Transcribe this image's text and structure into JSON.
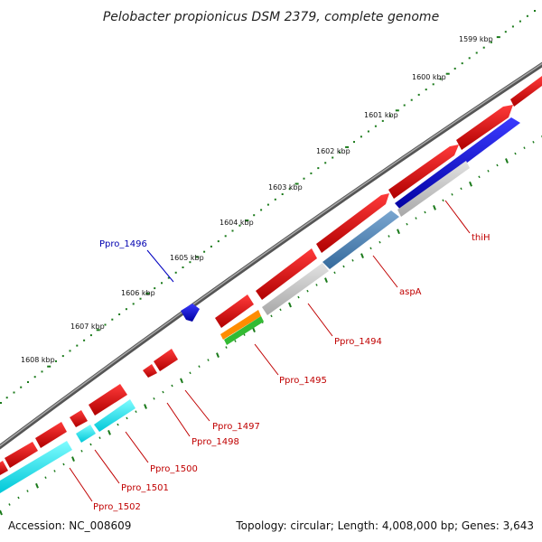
{
  "title": "Pelobacter propionicus DSM 2379, complete genome",
  "footer": {
    "accession": "Accession: NC_008609",
    "summary": "Topology: circular; Length: 4,008,000 bp; Genes: 3,643"
  },
  "ruler": {
    "labels": [
      "1599 kbp",
      "1600 kbp",
      "1601 kbp",
      "1602 kbp",
      "1603 kbp",
      "1604 kbp",
      "1605 kbp",
      "1606 kbp",
      "1607 kbp",
      "1608 kbp"
    ]
  },
  "genes": {
    "thiH": "thiH",
    "aspA": "aspA",
    "ppro_1494": "Ppro_1494",
    "ppro_1495": "Ppro_1495",
    "ppro_1496": "Ppro_1496",
    "ppro_1497": "Ppro_1497",
    "ppro_1498": "Ppro_1498",
    "ppro_1500": "Ppro_1500",
    "ppro_1501": "Ppro_1501",
    "ppro_1502": "Ppro_1502"
  },
  "colors": {
    "forward_cds": "#e00000",
    "reverse_cds": "#e00000",
    "blue_feature": "#0000dd",
    "steel_feature": "#4f86b8",
    "cyan_feature": "#00e6f0",
    "gray_feature": "#bfbfbf",
    "orange_feature": "#ff8c00",
    "green_feature": "#33bb33",
    "backbone": "#777777",
    "tick": "#1a7a1a"
  }
}
